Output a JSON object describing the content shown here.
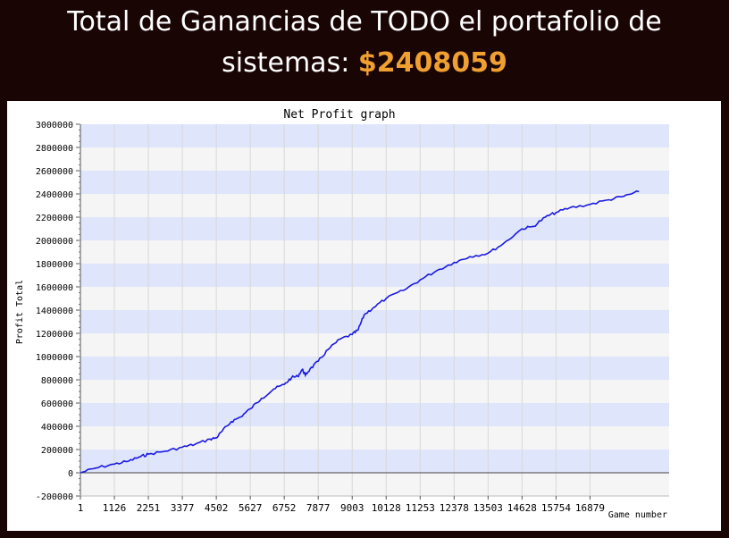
{
  "header": {
    "title_line1": "Total de Ganancias de TODO el portafolio de",
    "title_line2": "sistemas:",
    "total_amount": "$2408059"
  },
  "colors": {
    "background": "#1a0505",
    "amount_accent": "#f0a030",
    "band_blue": "#dfe5fb",
    "band_gray": "#f5f5f5",
    "series": "#1a1ae0"
  },
  "chart_data": {
    "type": "line",
    "title": "Net Profit graph",
    "xlabel": "Game number",
    "ylabel": "Profit Total",
    "ylim": [
      -200000,
      3000000
    ],
    "xlim": [
      1,
      19500
    ],
    "x_ticks": [
      "1",
      "1126",
      "2251",
      "3377",
      "4502",
      "5627",
      "6752",
      "7877",
      "9003",
      "10128",
      "11253",
      "12378",
      "13503",
      "14628",
      "15754",
      "16879"
    ],
    "y_ticks": [
      "3000000",
      "2800000",
      "2600000",
      "2400000",
      "2200000",
      "2000000",
      "1800000",
      "1600000",
      "1400000",
      "1200000",
      "1000000",
      "800000",
      "600000",
      "400000",
      "200000",
      "0",
      "-200000"
    ],
    "grid": true,
    "series": [
      {
        "x": [
          1,
          500,
          1126,
          1600,
          2000,
          2251,
          2800,
          3377,
          3800,
          4300,
          4502,
          4700,
          5000,
          5300,
          5627,
          6000,
          6400,
          6752,
          7000,
          7200,
          7350,
          7450,
          7600,
          7877,
          8200,
          8600,
          9003,
          9200,
          9400,
          9700,
          10128,
          10700,
          11253,
          11800,
          12378,
          12900,
          13503,
          14000,
          14628,
          15000,
          15400,
          15754,
          16200,
          16879,
          17500,
          18000,
          18500
        ],
        "y": [
          0,
          40000,
          75000,
          100000,
          140000,
          160000,
          185000,
          220000,
          245000,
          290000,
          300000,
          360000,
          440000,
          480000,
          550000,
          640000,
          720000,
          760000,
          820000,
          830000,
          890000,
          840000,
          890000,
          960000,
          1060000,
          1150000,
          1190000,
          1230000,
          1360000,
          1420000,
          1500000,
          1570000,
          1660000,
          1740000,
          1810000,
          1860000,
          1890000,
          1970000,
          2100000,
          2120000,
          2200000,
          2240000,
          2280000,
          2310000,
          2350000,
          2380000,
          2420000
        ]
      }
    ]
  }
}
